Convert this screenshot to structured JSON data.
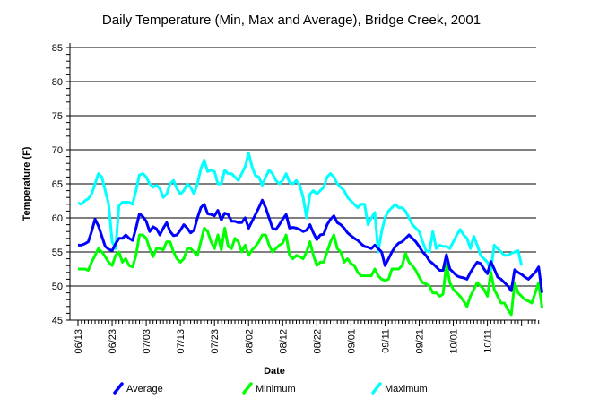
{
  "chart_data": {
    "type": "line",
    "title": "Daily Temperature (Min, Max and Average), Bridge Creek, 2001",
    "xlabel": "Date",
    "ylabel": "Temperature (F)",
    "ylim": [
      45,
      85
    ],
    "yticks": [
      45,
      50,
      55,
      60,
      65,
      70,
      75,
      80,
      85
    ],
    "grid": true,
    "legend_position": "bottom",
    "start_date": "2001-06-13",
    "x_tick_labels": [
      "06/13",
      "06/23",
      "07/03",
      "07/13",
      "07/23",
      "08/02",
      "08/12",
      "08/22",
      "09/01",
      "09/11",
      "09/21",
      "10/01",
      "10/11"
    ],
    "series": [
      {
        "name": "Average",
        "color": "#0000ff",
        "values": [
          56,
          56,
          56.2,
          56.5,
          58,
          59.8,
          58.8,
          57.3,
          55.8,
          55.4,
          55.2,
          56.2,
          57,
          57,
          57.5,
          57,
          56.7,
          58.5,
          60.6,
          60.2,
          59.5,
          58,
          58.7,
          58.4,
          57.5,
          58.5,
          59.3,
          58,
          57.4,
          57.5,
          58.2,
          59,
          58.5,
          57.8,
          58.2,
          60,
          61.5,
          62,
          60.6,
          60.5,
          60.3,
          61.1,
          59.7,
          60.7,
          60.5,
          59.5,
          59.5,
          59.3,
          59.3,
          60,
          58.5,
          59.5,
          60.5,
          61.5,
          62.6,
          61.5,
          60,
          58.5,
          58.3,
          59,
          59.8,
          60.5,
          58.5,
          58.6,
          58.5,
          58.3,
          58,
          58.2,
          59,
          57.8,
          56.8,
          57.5,
          57.6,
          59,
          59.8,
          60.3,
          59.3,
          59,
          58.5,
          57.8,
          57.4,
          57,
          56.7,
          56.2,
          55.8,
          55.7,
          55.5,
          56,
          55.5,
          55,
          53,
          54,
          55,
          55.8,
          56.3,
          56.5,
          57,
          57.5,
          57,
          56.5,
          55.8,
          55,
          54.5,
          53.7,
          53.3,
          52.8,
          52.3,
          52.3,
          54.6,
          52.5,
          52,
          51.5,
          51.3,
          51.2,
          51,
          52,
          52.8,
          53.5,
          53.3,
          52.5,
          51.8,
          53.6,
          52.5,
          51.3,
          51,
          50.5,
          50,
          49.3,
          52.4,
          52,
          51.7,
          51.3,
          51,
          51.5,
          52,
          52.8,
          49
        ]
      },
      {
        "name": "Minimum",
        "color": "#00ff00",
        "values": [
          52.5,
          52.5,
          52.5,
          52.3,
          53.5,
          54.5,
          55.5,
          55,
          54.3,
          53.5,
          53,
          54.5,
          55,
          53.5,
          54,
          53,
          52.8,
          54.5,
          57.5,
          57.5,
          57,
          55.5,
          54.3,
          55.5,
          55.5,
          55.3,
          56.5,
          56.5,
          55,
          54,
          53.5,
          54,
          55.5,
          55.5,
          55,
          54.5,
          56.5,
          58.5,
          58,
          56.5,
          55.5,
          57.5,
          55.3,
          58.5,
          55.8,
          55.5,
          57,
          56.5,
          55,
          56,
          54.5,
          55.3,
          55.8,
          56.5,
          57.5,
          57.5,
          56,
          55,
          55.5,
          56,
          56.3,
          57.5,
          54.5,
          54,
          54.5,
          54.3,
          54,
          55,
          56.5,
          54.5,
          53,
          53.5,
          53.5,
          55,
          56.5,
          57.5,
          55.5,
          55,
          53.5,
          54,
          53.3,
          53,
          52,
          51.5,
          51.5,
          51.5,
          51.5,
          52.5,
          51.5,
          51,
          50.8,
          51,
          52.5,
          52.5,
          52.5,
          53,
          54.8,
          53.5,
          53,
          52.3,
          51.3,
          50.5,
          50.3,
          50,
          49,
          49,
          48.5,
          48.8,
          53.3,
          50.5,
          49.5,
          49,
          48.5,
          47.8,
          47,
          48.5,
          49.5,
          50.5,
          50,
          49.5,
          48.5,
          52,
          49.5,
          48.5,
          47.5,
          47.5,
          46.5,
          45.8,
          50.5,
          49,
          48.5,
          48,
          47.8,
          47.5,
          49,
          50.5,
          46.8
        ]
      },
      {
        "name": "Maximum",
        "color": "#00ffff",
        "values": [
          62.2,
          62,
          62.5,
          62.8,
          63.5,
          65,
          66.5,
          66,
          64,
          62,
          56.5,
          55.5,
          61.8,
          62.3,
          62.3,
          62.3,
          62,
          64,
          66.3,
          66.5,
          66,
          65,
          64.5,
          64.8,
          64.3,
          63,
          63.5,
          65,
          65.5,
          64.3,
          63.5,
          64,
          65,
          64.5,
          63.5,
          65,
          67.2,
          68.5,
          66.8,
          67,
          66.8,
          65,
          65,
          67,
          66.5,
          66.5,
          66,
          65.5,
          66.5,
          67.5,
          69.5,
          67.5,
          66.2,
          66,
          64.8,
          66,
          67,
          66.5,
          65.5,
          65,
          65.5,
          66.5,
          65.2,
          65,
          65.5,
          64.8,
          63,
          60,
          63.5,
          64,
          63.5,
          64,
          64.5,
          66,
          66.5,
          66,
          65,
          64.5,
          64,
          63,
          62.5,
          62,
          61.5,
          62,
          62,
          59,
          60,
          60.8,
          55,
          58,
          60,
          61,
          61.5,
          62,
          61.5,
          61.5,
          61,
          60,
          59,
          58.5,
          58,
          56.5,
          55.2,
          55,
          58,
          55.5,
          56,
          55.8,
          55.8,
          55.5,
          56.5,
          57.5,
          58.3,
          57.5,
          57,
          55.5,
          57.3,
          56,
          54.5,
          54,
          53.5,
          52.3,
          56,
          55.5,
          55,
          54.5,
          54.5,
          54.8,
          55,
          55.2,
          53
        ]
      }
    ]
  }
}
